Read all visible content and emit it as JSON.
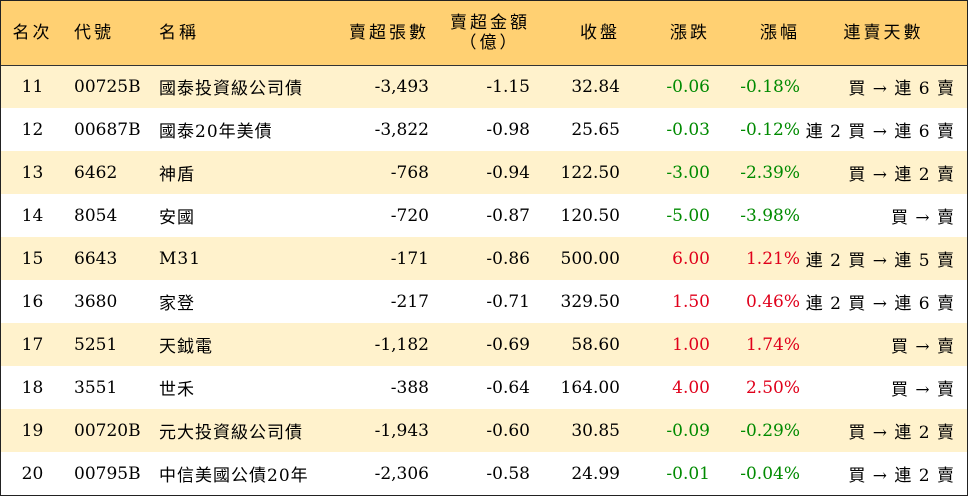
{
  "headers": {
    "rank": "名次",
    "code": "代號",
    "name": "名稱",
    "volume": "賣超張數",
    "amount_line1": "賣超金額",
    "amount_line2": "（億）",
    "close": "收盤",
    "change": "漲跌",
    "percent": "漲幅",
    "days": "連賣天數"
  },
  "rows": [
    {
      "rank": "11",
      "code": "00725B",
      "name": "國泰投資級公司債",
      "volume": "-3,493",
      "amount": "-1.15",
      "close": "32.84",
      "change": "-0.06",
      "percent": "-0.18%",
      "days": "買 → 連 6 賣",
      "dir": "down"
    },
    {
      "rank": "12",
      "code": "00687B",
      "name": "國泰20年美債",
      "volume": "-3,822",
      "amount": "-0.98",
      "close": "25.65",
      "change": "-0.03",
      "percent": "-0.12%",
      "days": "連 2 買 → 連 6 賣",
      "dir": "down"
    },
    {
      "rank": "13",
      "code": "6462",
      "name": "神盾",
      "volume": "-768",
      "amount": "-0.94",
      "close": "122.50",
      "change": "-3.00",
      "percent": "-2.39%",
      "days": "買 → 連 2 賣",
      "dir": "down"
    },
    {
      "rank": "14",
      "code": "8054",
      "name": "安國",
      "volume": "-720",
      "amount": "-0.87",
      "close": "120.50",
      "change": "-5.00",
      "percent": "-3.98%",
      "days": "買 → 賣",
      "dir": "down"
    },
    {
      "rank": "15",
      "code": "6643",
      "name": "M31",
      "volume": "-171",
      "amount": "-0.86",
      "close": "500.00",
      "change": "6.00",
      "percent": "1.21%",
      "days": "連 2 買 → 連 5 賣",
      "dir": "up"
    },
    {
      "rank": "16",
      "code": "3680",
      "name": "家登",
      "volume": "-217",
      "amount": "-0.71",
      "close": "329.50",
      "change": "1.50",
      "percent": "0.46%",
      "days": "連 2 買 → 連 6 賣",
      "dir": "up"
    },
    {
      "rank": "17",
      "code": "5251",
      "name": "天鉞電",
      "volume": "-1,182",
      "amount": "-0.69",
      "close": "58.60",
      "change": "1.00",
      "percent": "1.74%",
      "days": "買 → 賣",
      "dir": "up"
    },
    {
      "rank": "18",
      "code": "3551",
      "name": "世禾",
      "volume": "-388",
      "amount": "-0.64",
      "close": "164.00",
      "change": "4.00",
      "percent": "2.50%",
      "days": "買 → 賣",
      "dir": "up"
    },
    {
      "rank": "19",
      "code": "00720B",
      "name": "元大投資級公司債",
      "volume": "-1,943",
      "amount": "-0.60",
      "close": "30.85",
      "change": "-0.09",
      "percent": "-0.29%",
      "days": "買 → 連 2 賣",
      "dir": "down"
    },
    {
      "rank": "20",
      "code": "00795B",
      "name": "中信美國公債20年",
      "volume": "-2,306",
      "amount": "-0.58",
      "close": "24.99",
      "change": "-0.01",
      "percent": "-0.04%",
      "days": "買 → 連 2 賣",
      "dir": "down"
    }
  ],
  "colors": {
    "header_bg": "#ffd072",
    "stripe_bg": "#fff2cc",
    "up": "#e0001b",
    "down": "#008a00"
  }
}
